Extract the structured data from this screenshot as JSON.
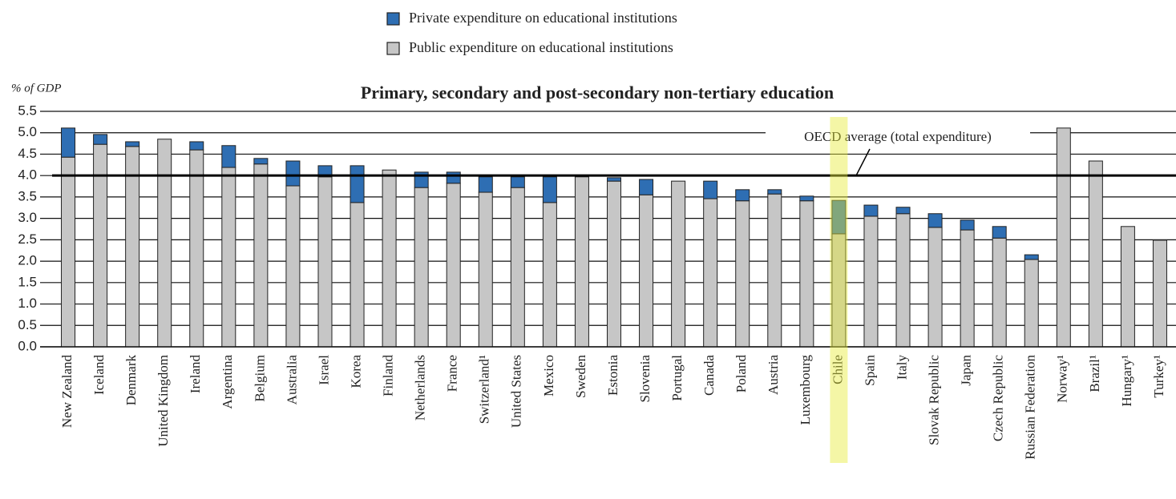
{
  "chart_data": {
    "type": "stacked_bar",
    "title": "Primary, secondary and post-secondary non-tertiary education",
    "y_label": "% of GDP",
    "categories": [
      "New Zealand",
      "Iceland",
      "Denmark",
      "United Kingdom",
      "Ireland",
      "Argentina",
      "Belgium",
      "Australia",
      "Israel",
      "Korea",
      "Finland",
      "Netherlands",
      "France",
      "Switzerland¹",
      "United States",
      "Mexico",
      "Sweden",
      "Estonia",
      "Slovenia",
      "Portugal",
      "Canada",
      "Poland",
      "Austria",
      "Luxembourg",
      "Chile",
      "Spain",
      "Italy",
      "Slovak Republic",
      "Japan",
      "Czech Republic",
      "Russian Federation",
      "Norway¹",
      "Brazil¹",
      "Hungary¹",
      "Turkey¹"
    ],
    "series": [
      {
        "name": "Public expenditure on educational institutions",
        "color": "#c6c6c6",
        "values": [
          4.43,
          4.73,
          4.68,
          4.85,
          4.6,
          4.19,
          4.27,
          3.76,
          3.97,
          3.37,
          4.13,
          3.72,
          3.82,
          3.61,
          3.72,
          3.37,
          3.97,
          3.87,
          3.55,
          3.87,
          3.46,
          3.41,
          3.57,
          3.41,
          2.64,
          3.05,
          3.11,
          2.79,
          2.73,
          2.54,
          2.04,
          5.11,
          4.34,
          2.81,
          2.49
        ]
      },
      {
        "name": "Private expenditure on educational institutions",
        "color": "#2e6eb3",
        "values": [
          0.68,
          0.23,
          0.11,
          0,
          0.19,
          0.51,
          0.13,
          0.58,
          0.26,
          0.86,
          0,
          0.36,
          0.26,
          0.36,
          0.25,
          0.6,
          0,
          0.08,
          0.36,
          0,
          0.41,
          0.26,
          0.1,
          0.11,
          0.78,
          0.26,
          0.15,
          0.32,
          0.23,
          0.27,
          0.11,
          0,
          0,
          0,
          0
        ]
      }
    ],
    "ylim": [
      0,
      5.5
    ],
    "yticks": [
      {
        "value": 0,
        "label": "0.0"
      },
      0.5,
      {
        "value": 1,
        "label": "1.0"
      },
      1.5,
      {
        "value": 2,
        "label": "2.0"
      },
      2.5,
      {
        "value": 3,
        "label": "3.0"
      },
      3.5,
      {
        "value": 4,
        "label": "4.0"
      },
      4.5,
      {
        "value": 5,
        "label": "5.0"
      },
      5.5
    ],
    "grid": true,
    "reference_line": {
      "value": 4,
      "label": "OECD average (total expenditure)"
    },
    "highlight": "Chile",
    "legend_position": "top"
  }
}
